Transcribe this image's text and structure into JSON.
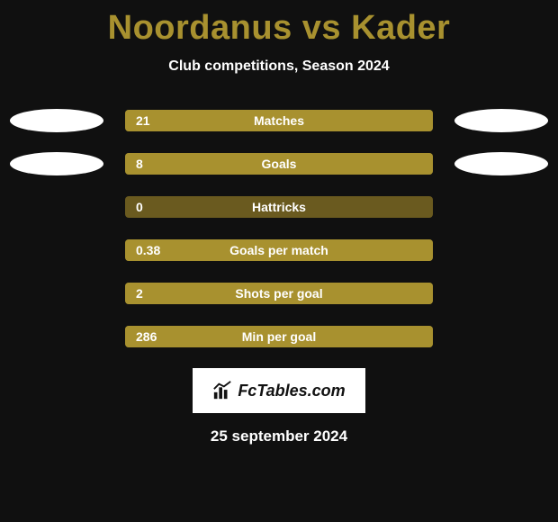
{
  "title_color": "#a8912f",
  "title": {
    "player_a": "Noordanus",
    "vs": "vs",
    "player_b": "Kader"
  },
  "subtitle": "Club competitions, Season 2024",
  "bar_track_color": "#6a5a1f",
  "bar_fill_color": "#a8912f",
  "ellipse_left_color": "#ffffff",
  "ellipse_right_color": "#ffffff",
  "text_color": "#ffffff",
  "background_color": "#101010",
  "stats": [
    {
      "label": "Matches",
      "value": "21",
      "fill_pct": 100,
      "show_ellipses": true
    },
    {
      "label": "Goals",
      "value": "8",
      "fill_pct": 100,
      "show_ellipses": true
    },
    {
      "label": "Hattricks",
      "value": "0",
      "fill_pct": 0,
      "show_ellipses": false
    },
    {
      "label": "Goals per match",
      "value": "0.38",
      "fill_pct": 100,
      "show_ellipses": false
    },
    {
      "label": "Shots per goal",
      "value": "2",
      "fill_pct": 100,
      "show_ellipses": false
    },
    {
      "label": "Min per goal",
      "value": "286",
      "fill_pct": 100,
      "show_ellipses": false
    }
  ],
  "logo_text": "FcTables.com",
  "date": "25 september 2024"
}
